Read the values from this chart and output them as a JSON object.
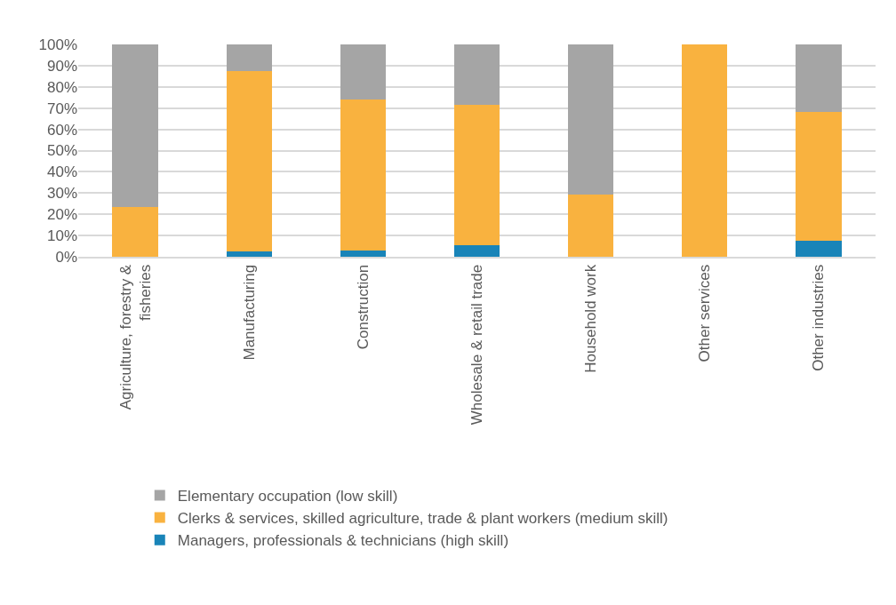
{
  "chart_data": {
    "type": "bar",
    "stacked": true,
    "categories": [
      "Agriculture, forestry & fisheries",
      "Manufacturing",
      "Construction",
      "Wholesale & retail trade",
      "Household work",
      "Other services",
      "Other industries"
    ],
    "series": [
      {
        "name": "Managers, professionals & technicians (high skill)",
        "color": "#1984b8",
        "values": [
          0,
          2.4,
          2.8,
          5.3,
          0,
          0,
          7.4
        ]
      },
      {
        "name": "Clerks & services, skilled agriculture, trade & plant workers (medium skill)",
        "color": "#f9b23f",
        "values": [
          23.5,
          85.0,
          71.1,
          66.2,
          29.2,
          100,
          60.9
        ]
      },
      {
        "name": "Elementary occupation (low skill)",
        "color": "#a5a5a5",
        "values": [
          76.5,
          12.6,
          26.1,
          28.5,
          70.8,
          0,
          31.7
        ]
      }
    ],
    "ylim": [
      0,
      100
    ],
    "yticks": [
      {
        "value": 0,
        "label": "0%"
      },
      {
        "value": 10,
        "label": "10%"
      },
      {
        "value": 20,
        "label": "20%"
      },
      {
        "value": 30,
        "label": "30%"
      },
      {
        "value": 40,
        "label": "40%"
      },
      {
        "value": 50,
        "label": "50%"
      },
      {
        "value": 60,
        "label": "60%"
      },
      {
        "value": 70,
        "label": "70%"
      },
      {
        "value": 80,
        "label": "80%"
      },
      {
        "value": 90,
        "label": "90%"
      },
      {
        "value": 100,
        "label": "100%"
      }
    ],
    "grid": "y",
    "legend": "bottom"
  }
}
